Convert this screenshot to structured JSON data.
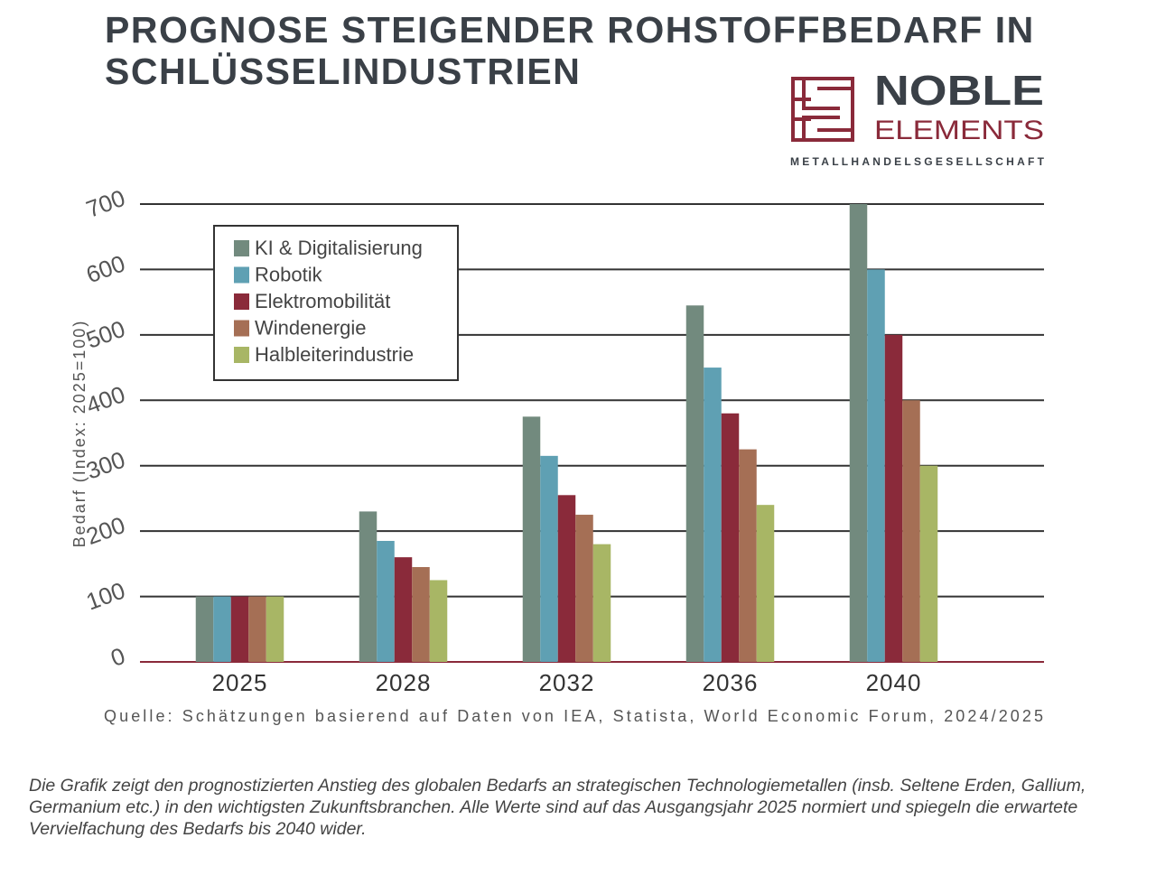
{
  "chart_data": {
    "type": "bar",
    "title": "PROGNOSE STEIGENDER ROHSTOFFBEDARF IN SCHLÜSSELINDUSTRIEN",
    "y_label": "Bedarf (Index: 2025=100)",
    "source": "Quelle: Schätzungen basierend auf Daten von IEA, Statista, World Economic Forum, 2024/2025",
    "description": "Die Grafik zeigt den prognostizierten Anstieg des globalen Bedarfs an strategischen Technologiemetallen (insb. Seltene Erden, Gallium, Germanium etc.) in den wichtigsten Zukunftsbranchen. Alle Werte sind auf das Ausgangsjahr 2025 normiert und spiegeln die erwartete Vervielfachung des Bedarfs bis 2040 wider.",
    "categories": [
      "2025",
      "2028",
      "2032",
      "2036",
      "2040"
    ],
    "series": [
      {
        "name": "KI & Digitalisierung",
        "color": "#728a7e",
        "values": [
          100,
          230,
          375,
          545,
          700
        ]
      },
      {
        "name": "Robotik",
        "color": "#5fa0b3",
        "values": [
          100,
          185,
          315,
          450,
          600
        ]
      },
      {
        "name": "Elektromobilität",
        "color": "#8a2a3a",
        "values": [
          100,
          160,
          255,
          380,
          500
        ]
      },
      {
        "name": "Windenergie",
        "color": "#a56f55",
        "values": [
          100,
          145,
          225,
          325,
          400
        ]
      },
      {
        "name": "Halbleiterindustrie",
        "color": "#a8b665",
        "values": [
          100,
          125,
          180,
          240,
          300
        ]
      }
    ],
    "ylim": [
      0,
      700
    ],
    "yticks": [
      0,
      100,
      200,
      300,
      400,
      500,
      600,
      700
    ],
    "grid": true,
    "legend": "upper left"
  },
  "logo": {
    "name_top": "NOBLE",
    "name_bottom": "ELEMENTS",
    "tagline": "METALLHANDELSGESELLSCHAFT"
  }
}
